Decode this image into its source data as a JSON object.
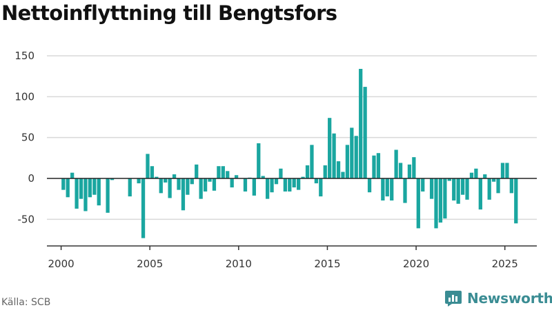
{
  "title": "Nettoinflyttning till Bengtsfors",
  "source": "Källa: SCB",
  "brand": {
    "name": "Newsworthy",
    "icon": "newsworthy-logo-icon"
  },
  "colors": {
    "bar": "#1aa6a0",
    "zero_line": "#222222",
    "grid": "#d9d9d9",
    "brand": "#3a8c93"
  },
  "chart_data": {
    "type": "bar",
    "title": "Nettoinflyttning till Bengtsfors",
    "xlabel": "",
    "ylabel": "",
    "ylim": [
      -80,
      150
    ],
    "yticks": [
      -50,
      0,
      50,
      100,
      150
    ],
    "xlim": [
      1999.2,
      2026.8
    ],
    "xticks": [
      2000,
      2005,
      2010,
      2015,
      2020,
      2025
    ],
    "grid": true,
    "legend": "none",
    "frequency": "quarterly",
    "series": [
      {
        "values": [
          {
            "x": "2000-Q1",
            "y": -14
          },
          {
            "x": "2000-Q2",
            "y": -23
          },
          {
            "x": "2000-Q3",
            "y": 7
          },
          {
            "x": "2000-Q4",
            "y": -37
          },
          {
            "x": "2001-Q1",
            "y": -25
          },
          {
            "x": "2001-Q2",
            "y": -40
          },
          {
            "x": "2001-Q3",
            "y": -23
          },
          {
            "x": "2001-Q4",
            "y": -20
          },
          {
            "x": "2002-Q1",
            "y": -33
          },
          {
            "x": "2002-Q2",
            "y": 0
          },
          {
            "x": "2002-Q3",
            "y": -42
          },
          {
            "x": "2002-Q4",
            "y": -2
          },
          {
            "x": "2003-Q1",
            "y": 0
          },
          {
            "x": "2003-Q2",
            "y": 0
          },
          {
            "x": "2003-Q3",
            "y": 0
          },
          {
            "x": "2003-Q4",
            "y": -22
          },
          {
            "x": "2004-Q1",
            "y": 0
          },
          {
            "x": "2004-Q2",
            "y": -6
          },
          {
            "x": "2004-Q3",
            "y": -73
          },
          {
            "x": "2004-Q4",
            "y": 30
          },
          {
            "x": "2005-Q1",
            "y": 15
          },
          {
            "x": "2005-Q2",
            "y": 2
          },
          {
            "x": "2005-Q3",
            "y": -18
          },
          {
            "x": "2005-Q4",
            "y": -5
          },
          {
            "x": "2006-Q1",
            "y": -24
          },
          {
            "x": "2006-Q2",
            "y": 5
          },
          {
            "x": "2006-Q3",
            "y": -14
          },
          {
            "x": "2006-Q4",
            "y": -39
          },
          {
            "x": "2007-Q1",
            "y": -20
          },
          {
            "x": "2007-Q2",
            "y": -7
          },
          {
            "x": "2007-Q3",
            "y": 17
          },
          {
            "x": "2007-Q4",
            "y": -25
          },
          {
            "x": "2008-Q1",
            "y": -16
          },
          {
            "x": "2008-Q2",
            "y": -4
          },
          {
            "x": "2008-Q3",
            "y": -15
          },
          {
            "x": "2008-Q4",
            "y": 15
          },
          {
            "x": "2009-Q1",
            "y": 15
          },
          {
            "x": "2009-Q2",
            "y": 9
          },
          {
            "x": "2009-Q3",
            "y": -11
          },
          {
            "x": "2009-Q4",
            "y": 4
          },
          {
            "x": "2010-Q1",
            "y": 0
          },
          {
            "x": "2010-Q2",
            "y": -16
          },
          {
            "x": "2010-Q3",
            "y": 1
          },
          {
            "x": "2010-Q4",
            "y": -21
          },
          {
            "x": "2011-Q1",
            "y": 43
          },
          {
            "x": "2011-Q2",
            "y": 3
          },
          {
            "x": "2011-Q3",
            "y": -25
          },
          {
            "x": "2011-Q4",
            "y": -17
          },
          {
            "x": "2012-Q1",
            "y": -7
          },
          {
            "x": "2012-Q2",
            "y": 12
          },
          {
            "x": "2012-Q3",
            "y": -16
          },
          {
            "x": "2012-Q4",
            "y": -16
          },
          {
            "x": "2013-Q1",
            "y": -11
          },
          {
            "x": "2013-Q2",
            "y": -14
          },
          {
            "x": "2013-Q3",
            "y": 2
          },
          {
            "x": "2013-Q4",
            "y": 16
          },
          {
            "x": "2014-Q1",
            "y": 41
          },
          {
            "x": "2014-Q2",
            "y": -6
          },
          {
            "x": "2014-Q3",
            "y": -22
          },
          {
            "x": "2014-Q4",
            "y": 16
          },
          {
            "x": "2015-Q1",
            "y": 74
          },
          {
            "x": "2015-Q2",
            "y": 55
          },
          {
            "x": "2015-Q3",
            "y": 21
          },
          {
            "x": "2015-Q4",
            "y": 8
          },
          {
            "x": "2016-Q1",
            "y": 41
          },
          {
            "x": "2016-Q2",
            "y": 62
          },
          {
            "x": "2016-Q3",
            "y": 52
          },
          {
            "x": "2016-Q4",
            "y": 134
          },
          {
            "x": "2017-Q1",
            "y": 112
          },
          {
            "x": "2017-Q2",
            "y": -17
          },
          {
            "x": "2017-Q3",
            "y": 28
          },
          {
            "x": "2017-Q4",
            "y": 31
          },
          {
            "x": "2018-Q1",
            "y": -27
          },
          {
            "x": "2018-Q2",
            "y": -22
          },
          {
            "x": "2018-Q3",
            "y": -27
          },
          {
            "x": "2018-Q4",
            "y": 35
          },
          {
            "x": "2019-Q1",
            "y": 19
          },
          {
            "x": "2019-Q2",
            "y": -30
          },
          {
            "x": "2019-Q3",
            "y": 17
          },
          {
            "x": "2019-Q4",
            "y": 26
          },
          {
            "x": "2020-Q1",
            "y": -61
          },
          {
            "x": "2020-Q2",
            "y": -16
          },
          {
            "x": "2020-Q3",
            "y": 0
          },
          {
            "x": "2020-Q4",
            "y": -25
          },
          {
            "x": "2021-Q1",
            "y": -61
          },
          {
            "x": "2021-Q2",
            "y": -54
          },
          {
            "x": "2021-Q3",
            "y": -49
          },
          {
            "x": "2021-Q4",
            "y": -3
          },
          {
            "x": "2022-Q1",
            "y": -27
          },
          {
            "x": "2022-Q2",
            "y": -31
          },
          {
            "x": "2022-Q3",
            "y": -20
          },
          {
            "x": "2022-Q4",
            "y": -26
          },
          {
            "x": "2023-Q1",
            "y": 7
          },
          {
            "x": "2023-Q2",
            "y": 12
          },
          {
            "x": "2023-Q3",
            "y": -38
          },
          {
            "x": "2023-Q4",
            "y": 5
          },
          {
            "x": "2024-Q1",
            "y": -26
          },
          {
            "x": "2024-Q2",
            "y": -4
          },
          {
            "x": "2024-Q3",
            "y": -18
          },
          {
            "x": "2024-Q4",
            "y": 19
          },
          {
            "x": "2025-Q1",
            "y": 19
          },
          {
            "x": "2025-Q2",
            "y": -18
          },
          {
            "x": "2025-Q3",
            "y": -55
          }
        ]
      }
    ]
  }
}
